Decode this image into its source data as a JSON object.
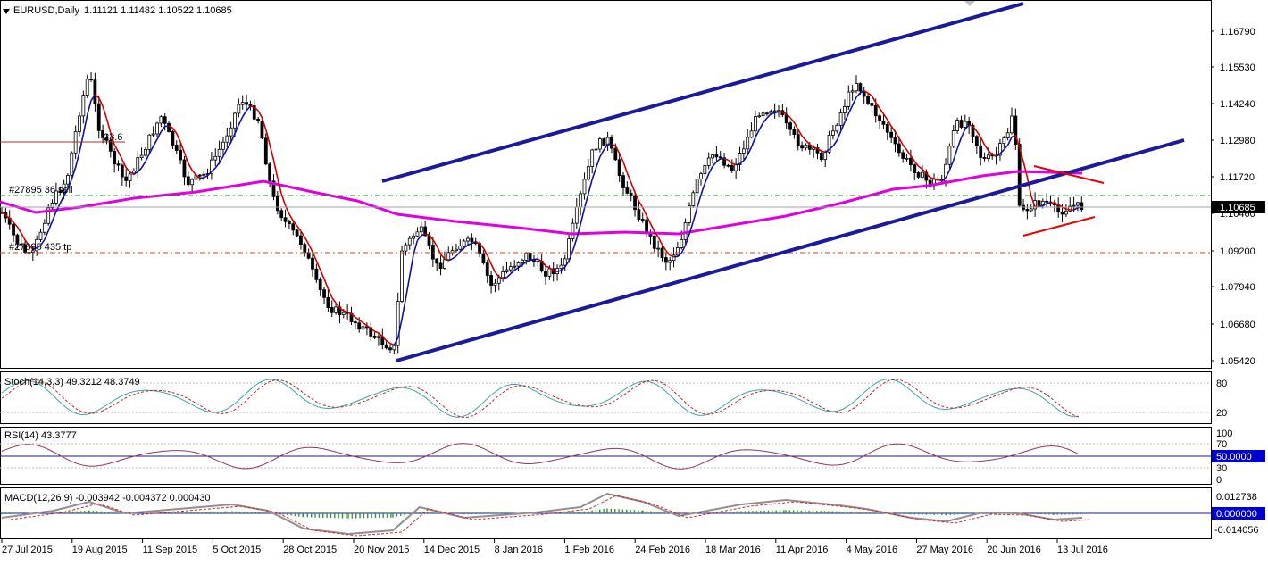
{
  "header": {
    "title": "EURUSD,Daily",
    "ohlc": "1.11121 1.11482 1.10522 1.10685"
  },
  "price_axis": {
    "ticks": [
      "1.16790",
      "1.15530",
      "1.14240",
      "1.12980",
      "1.11720",
      "1.10460",
      "1.09200",
      "1.07940",
      "1.06680",
      "1.05420"
    ],
    "current_price": "1.10685"
  },
  "orders": {
    "sell": "#27895 36 sell",
    "tp": "#27895 435 tp",
    "fib_level": "23.6"
  },
  "stoch": {
    "label": "Stoch(14,3,3) 49.3212 48.3749",
    "ticks": [
      "80",
      "20"
    ]
  },
  "rsi": {
    "label": "RSI(14) 43.3777",
    "ticks": [
      "100",
      "70",
      "30",
      "0"
    ],
    "current": "50.0000"
  },
  "macd": {
    "label": "MACD(12,26,9) -0.003942 -0.004372 0.000430",
    "ticks": [
      "0.012738",
      "-0.014056"
    ],
    "current": "0.000000"
  },
  "time_axis": [
    "27 Jul 2015",
    "19 Aug 2015",
    "11 Sep 2015",
    "5 Oct 2015",
    "28 Oct 2015",
    "20 Nov 2015",
    "14 Dec 2015",
    "8 Jan 2016",
    "1 Feb 2016",
    "24 Feb 2016",
    "18 Mar 2016",
    "11 Apr 2016",
    "4 May 2016",
    "27 May 2016",
    "20 Jun 2016",
    "13 Jul 2016"
  ],
  "colors": {
    "candle": "#000000",
    "ma_slow": "#e000e0",
    "ma_fast_up": "#1010a0",
    "ma_fast_down": "#cc0000",
    "channel": "#1a1a9a",
    "triangle": "#ee0000",
    "stoch_main": "#3aa6a6",
    "stoch_signal": "#cc2222",
    "rsi_line": "#993355",
    "macd_hist": "#2e9a2e",
    "macd_line": "#909090",
    "macd_signal": "#dd2222",
    "price_label_bg": "#000000",
    "value_label_bg": "#0000cc"
  },
  "icons": {
    "title_marker": "triangle-down-icon",
    "scroll_marker": "diamond-icon"
  }
}
